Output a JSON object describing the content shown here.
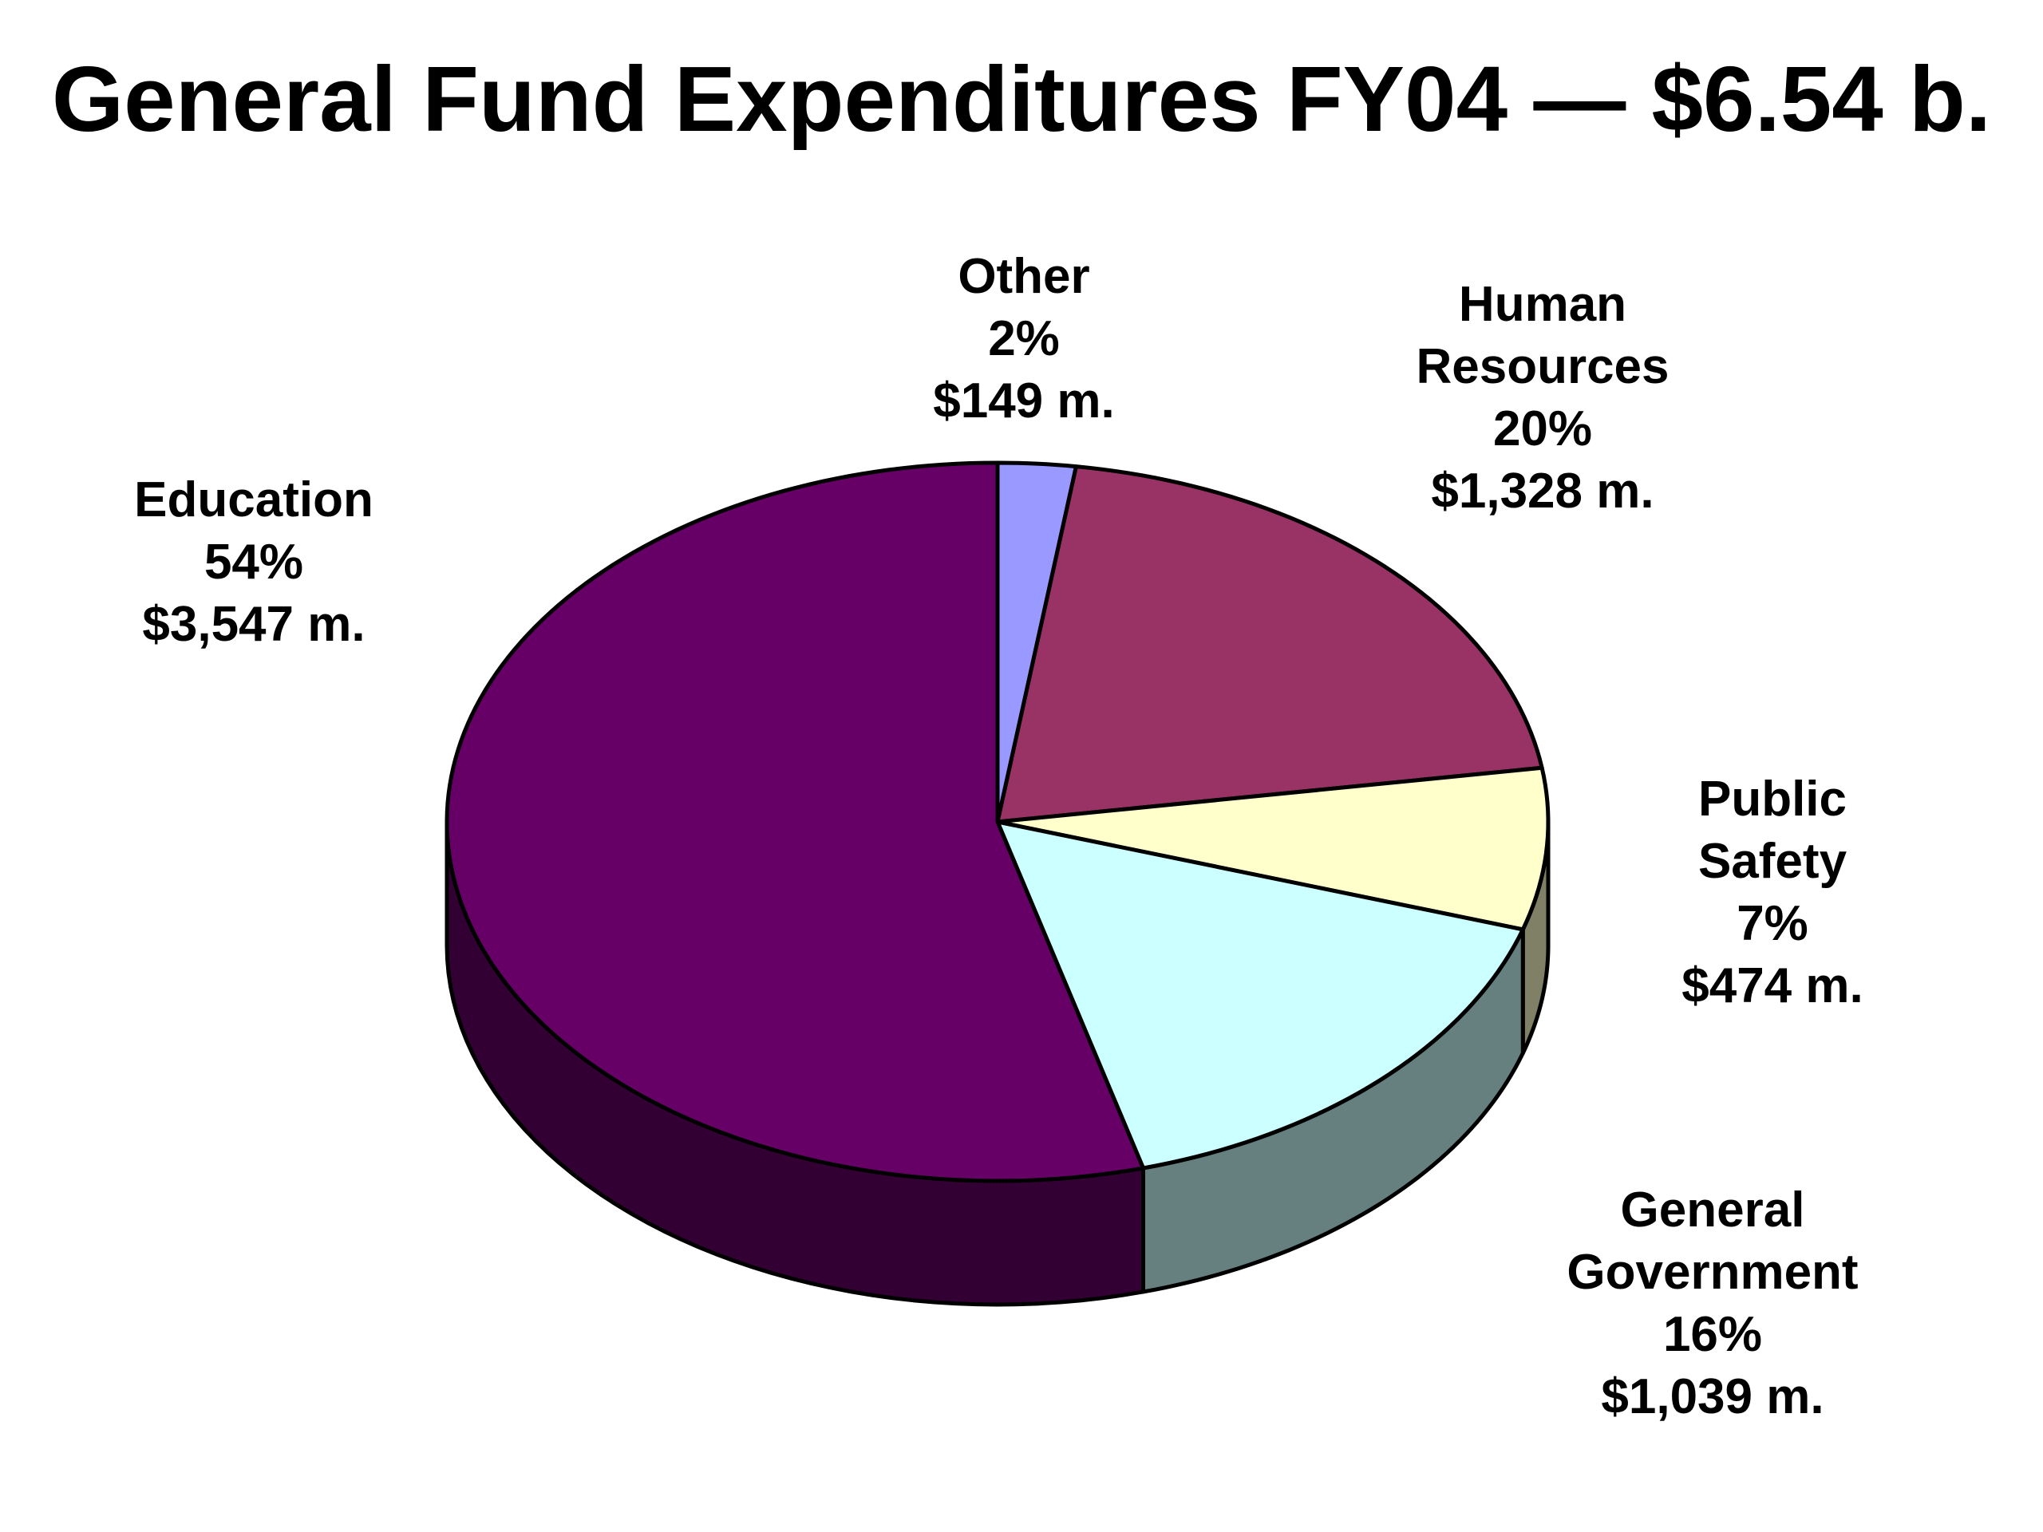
{
  "chart_data": {
    "type": "pie",
    "title": "General Fund Expenditures FY04 — $6.54 b.",
    "categories": [
      "Other",
      "Human Resources",
      "Public Safety",
      "General Government",
      "Education"
    ],
    "values": [
      149,
      1328,
      474,
      1039,
      3547
    ],
    "percent_labels": [
      "2%",
      "20%",
      "7%",
      "16%",
      "54%"
    ],
    "amount_labels": [
      "$149 m.",
      "$1,328 m.",
      "$474 m.",
      "$1,039 m.",
      "$3,547 m."
    ],
    "slices": [
      {
        "name": "Other",
        "name_lines": [
          "Other"
        ],
        "percent": "2%",
        "amount": "$149 m.",
        "value": 149
      },
      {
        "name": "Human Resources",
        "name_lines": [
          "Human",
          "Resources"
        ],
        "percent": "20%",
        "amount": "$1,328 m.",
        "value": 1328
      },
      {
        "name": "Public Safety",
        "name_lines": [
          "Public",
          "Safety"
        ],
        "percent": "7%",
        "amount": "$474 m.",
        "value": 474
      },
      {
        "name": "General Government",
        "name_lines": [
          "General",
          "Government"
        ],
        "percent": "16%",
        "amount": "$1,039 m.",
        "value": 1039
      },
      {
        "name": "Education",
        "name_lines": [
          "Education"
        ],
        "percent": "54%",
        "amount": "$3,547 m.",
        "value": 3547
      }
    ],
    "colors": {
      "Other": "#9999ff",
      "Human Resources": "#993366",
      "Public Safety": "#ffffcc",
      "General Government": "#ccffff",
      "Education": "#660066"
    },
    "side_colors": {
      "Other": "#4d4d80",
      "Human Resources": "#4d1a33",
      "Public Safety": "#808066",
      "General Government": "#668080",
      "Education": "#330033"
    },
    "style": "3d tilted pie, slices clockwise from 12 o'clock",
    "legend": "none; labels placed beside slices"
  }
}
